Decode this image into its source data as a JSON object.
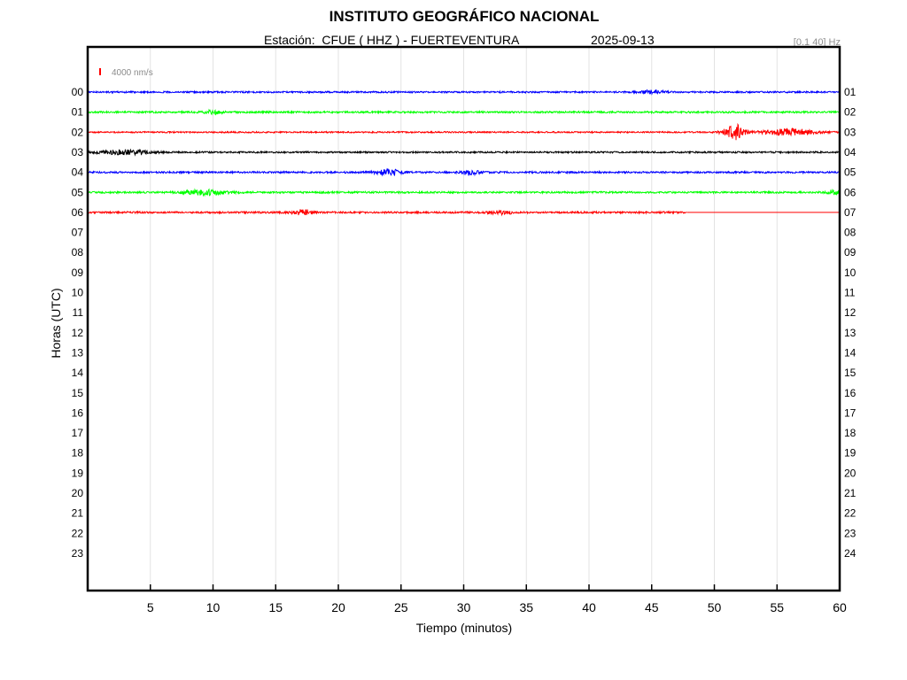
{
  "header": {
    "title": "INSTITUTO GEOGRÁFICO NACIONAL",
    "station": "Estación:  CFUE ( HHZ ) - FUERTEVENTURA",
    "date": "2025-09-13",
    "filter": "[0.1 40] Hz"
  },
  "chart_data": {
    "type": "line",
    "title": "INSTITUTO GEOGRÁFICO NACIONAL",
    "xlabel": "Tiempo (minutos)",
    "ylabel": "Horas (UTC)",
    "xlim": [
      0,
      60
    ],
    "x_ticks": [
      "5",
      "10",
      "15",
      "20",
      "25",
      "30",
      "35",
      "40",
      "45",
      "50",
      "55",
      "60"
    ],
    "left_hour_labels": [
      "00",
      "01",
      "02",
      "03",
      "04",
      "05",
      "06",
      "07",
      "08",
      "09",
      "10",
      "11",
      "12",
      "13",
      "14",
      "15",
      "16",
      "17",
      "18",
      "19",
      "20",
      "21",
      "22",
      "23"
    ],
    "right_hour_labels": [
      "01",
      "02",
      "03",
      "04",
      "05",
      "06",
      "07",
      "08",
      "09",
      "10",
      "11",
      "12",
      "13",
      "14",
      "15",
      "16",
      "17",
      "18",
      "19",
      "20",
      "21",
      "22",
      "23",
      "24"
    ],
    "grid": true,
    "scale_bar": {
      "label": "4000 nm/s",
      "color": "#ff0000"
    },
    "trace_colors": [
      "#0000ff",
      "#00ff00",
      "#ff0000",
      "#000000"
    ],
    "series": [
      {
        "hour": "00",
        "color": "#0000ff",
        "data_end_minute": 60,
        "base_amplitude": 0.18,
        "bursts": [
          {
            "minute": 45.0,
            "width": 1.0,
            "amp": 0.35
          }
        ]
      },
      {
        "hour": "01",
        "color": "#00ff00",
        "data_end_minute": 60,
        "base_amplitude": 0.2,
        "bursts": [
          {
            "minute": 10.0,
            "width": 0.8,
            "amp": 0.35
          }
        ]
      },
      {
        "hour": "02",
        "color": "#ff0000",
        "data_end_minute": 60,
        "base_amplitude": 0.16,
        "bursts": [
          {
            "minute": 51.6,
            "width": 0.8,
            "amp": 1.8
          },
          {
            "minute": 56.0,
            "width": 2.0,
            "amp": 0.75
          }
        ]
      },
      {
        "hour": "03",
        "color": "#000000",
        "data_end_minute": 60,
        "base_amplitude": 0.18,
        "bursts": [
          {
            "minute": 3.0,
            "width": 2.0,
            "amp": 0.5
          }
        ]
      },
      {
        "hour": "04",
        "color": "#0000ff",
        "data_end_minute": 60,
        "base_amplitude": 0.2,
        "bursts": [
          {
            "minute": 24.0,
            "width": 1.0,
            "amp": 0.65
          },
          {
            "minute": 30.5,
            "width": 0.7,
            "amp": 0.6
          }
        ]
      },
      {
        "hour": "05",
        "color": "#00ff00",
        "data_end_minute": 60,
        "base_amplitude": 0.2,
        "bursts": [
          {
            "minute": 9.5,
            "width": 1.8,
            "amp": 0.55
          },
          {
            "minute": 59.5,
            "width": 0.5,
            "amp": 0.45
          }
        ]
      },
      {
        "hour": "06",
        "color": "#ff0000",
        "data_end_minute": 47.8,
        "base_amplitude": 0.2,
        "bursts": [
          {
            "minute": 17.2,
            "width": 0.9,
            "amp": 0.55
          },
          {
            "minute": 33.0,
            "width": 1.0,
            "amp": 0.35
          }
        ]
      }
    ]
  }
}
